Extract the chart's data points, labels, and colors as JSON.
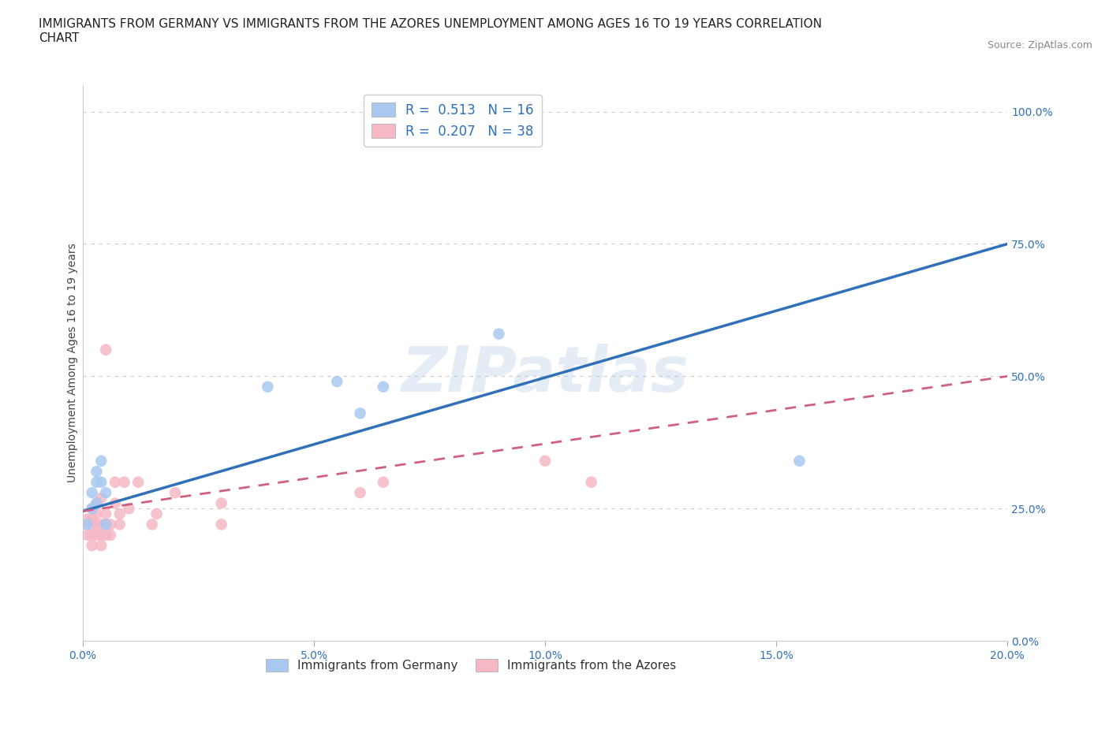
{
  "title": "IMMIGRANTS FROM GERMANY VS IMMIGRANTS FROM THE AZORES UNEMPLOYMENT AMONG AGES 16 TO 19 YEARS CORRELATION\nCHART",
  "source_text": "Source: ZipAtlas.com",
  "ylabel": "Unemployment Among Ages 16 to 19 years",
  "xlim": [
    0.0,
    0.2
  ],
  "ylim": [
    0.0,
    1.05
  ],
  "yticks": [
    0.0,
    0.25,
    0.5,
    0.75,
    1.0
  ],
  "ytick_labels": [
    "0.0%",
    "25.0%",
    "50.0%",
    "75.0%",
    "100.0%"
  ],
  "xticks": [
    0.0,
    0.05,
    0.1,
    0.15,
    0.2
  ],
  "xtick_labels": [
    "0.0%",
    "5.0%",
    "10.0%",
    "15.0%",
    "20.0%"
  ],
  "germany_R": 0.513,
  "germany_N": 16,
  "azores_R": 0.207,
  "azores_N": 38,
  "germany_color": "#a8c8f0",
  "germany_line_color": "#3070b8",
  "azores_color": "#f5b8c4",
  "azores_line_color": "#d06080",
  "watermark": "ZIPatlas",
  "legend_color": "#3070b8",
  "germany_scatter_x": [
    0.001,
    0.002,
    0.002,
    0.003,
    0.003,
    0.003,
    0.004,
    0.004,
    0.005,
    0.005,
    0.04,
    0.055,
    0.06,
    0.065,
    0.09,
    0.155
  ],
  "germany_scatter_y": [
    0.22,
    0.25,
    0.28,
    0.26,
    0.3,
    0.32,
    0.3,
    0.34,
    0.28,
    0.22,
    0.48,
    0.49,
    0.43,
    0.48,
    0.58,
    0.34
  ],
  "azores_scatter_x": [
    0.001,
    0.001,
    0.001,
    0.002,
    0.002,
    0.002,
    0.002,
    0.002,
    0.003,
    0.003,
    0.003,
    0.003,
    0.004,
    0.004,
    0.004,
    0.004,
    0.005,
    0.005,
    0.005,
    0.005,
    0.006,
    0.006,
    0.007,
    0.007,
    0.008,
    0.008,
    0.009,
    0.01,
    0.012,
    0.015,
    0.016,
    0.02,
    0.03,
    0.03,
    0.06,
    0.065,
    0.1,
    0.11
  ],
  "azores_scatter_y": [
    0.2,
    0.22,
    0.23,
    0.18,
    0.2,
    0.22,
    0.23,
    0.25,
    0.2,
    0.22,
    0.24,
    0.26,
    0.18,
    0.2,
    0.22,
    0.27,
    0.2,
    0.22,
    0.24,
    0.55,
    0.2,
    0.22,
    0.26,
    0.3,
    0.22,
    0.24,
    0.3,
    0.25,
    0.3,
    0.22,
    0.24,
    0.28,
    0.22,
    0.26,
    0.28,
    0.3,
    0.34,
    0.3
  ],
  "germany_line_x0": 0.0,
  "germany_line_y0": 0.245,
  "germany_line_x1": 0.2,
  "germany_line_y1": 0.75,
  "azores_line_x0": 0.0,
  "azores_line_y0": 0.245,
  "azores_line_x1": 0.2,
  "azores_line_y1": 0.5,
  "background_color": "#ffffff",
  "grid_color": "#cccccc",
  "title_fontsize": 11,
  "axis_label_fontsize": 10,
  "tick_fontsize": 10,
  "tick_color": "#3070b8"
}
